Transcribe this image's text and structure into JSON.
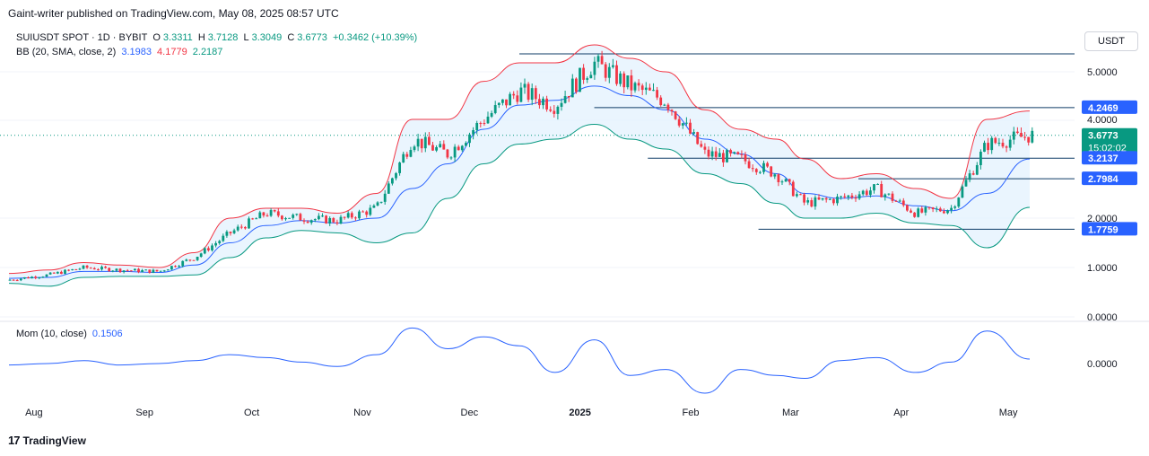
{
  "header": {
    "publisher_line": "Gaint-writer published on TradingView.com, May 08, 2025 08:57 UTC"
  },
  "legend": {
    "symbol": "SUIUSDT SPOT · 1D · BYBIT",
    "open_label": "O",
    "open": "3.3311",
    "high_label": "H",
    "high": "3.7128",
    "low_label": "L",
    "low": "3.3049",
    "close_label": "C",
    "close": "3.6773",
    "change": "+0.3462 (+10.39%)",
    "bb_label": "BB (20, SMA, close, 2)",
    "bb_basis": "3.1983",
    "bb_upper": "4.1779",
    "bb_lower": "2.2187",
    "mom_label": "Mom (10, close)",
    "mom_value": "0.1506"
  },
  "currency": "USDT",
  "brand": {
    "logo": "17",
    "name": "TradingView"
  },
  "colors": {
    "up": "#089981",
    "down": "#f23645",
    "basis": "#2962ff",
    "upper": "#f23645",
    "lower": "#089981",
    "band_fill": "#e3f2fd",
    "level_line": "#0d3b66",
    "badge_blue": "#2962ff",
    "badge_green": "#089981"
  },
  "chart_data": {
    "type": "candlestick",
    "price_axis": {
      "ticks": [
        "5.0000",
        "4.0000",
        "2.0000",
        "1.0000",
        "0.0000"
      ],
      "scale": "log"
    },
    "momentum_axis": {
      "ticks": [
        "0.0000"
      ]
    },
    "x_tick_labels": [
      "Aug",
      "Sep",
      "Oct",
      "Nov",
      "Dec",
      "2025",
      "Feb",
      "Mar",
      "Apr",
      "May"
    ],
    "x": [
      "2024-08-01",
      "2024-09-01",
      "2024-10-01",
      "2024-11-01",
      "2024-12-01",
      "2025-01-01",
      "2025-02-01",
      "2025-03-01",
      "2025-04-01",
      "2025-05-01"
    ],
    "price_labels": [
      {
        "text": "4.2469",
        "value": 4.2469,
        "style": "blue"
      },
      {
        "text": "3.6773",
        "value": 3.6773,
        "style": "green",
        "sub": "15:02:02"
      },
      {
        "text": "3.2137",
        "value": 3.2137,
        "style": "blue"
      },
      {
        "text": "2.7984",
        "value": 2.7984,
        "style": "blue"
      },
      {
        "text": "1.7759",
        "value": 1.7759,
        "style": "blue"
      }
    ],
    "horizontal_levels": [
      {
        "value": 5.4,
        "start": "2024-12-15"
      },
      {
        "value": 4.2469,
        "start": "2025-01-05"
      },
      {
        "value": 3.2137,
        "start": "2025-01-20"
      },
      {
        "value": 2.7984,
        "start": "2025-03-20"
      },
      {
        "value": 1.7759,
        "start": "2025-02-20"
      }
    ],
    "close_series": {
      "dates": [
        "2024-07-25",
        "2024-08-05",
        "2024-08-15",
        "2024-08-25",
        "2024-09-05",
        "2024-09-15",
        "2024-09-25",
        "2024-10-05",
        "2024-10-15",
        "2024-10-25",
        "2024-11-05",
        "2024-11-15",
        "2024-11-25",
        "2024-12-05",
        "2024-12-15",
        "2024-12-25",
        "2025-01-05",
        "2025-01-15",
        "2025-01-25",
        "2025-02-05",
        "2025-02-15",
        "2025-02-25",
        "2025-03-05",
        "2025-03-15",
        "2025-03-25",
        "2025-04-05",
        "2025-04-15",
        "2025-04-25",
        "2025-05-07"
      ],
      "values": [
        0.75,
        0.85,
        1.0,
        0.95,
        0.92,
        1.2,
        1.7,
        2.1,
        2.0,
        1.95,
        2.2,
        3.6,
        3.3,
        4.0,
        4.6,
        4.3,
        5.2,
        4.7,
        4.4,
        3.3,
        3.2,
        2.9,
        2.3,
        2.4,
        2.6,
        2.1,
        2.2,
        3.5,
        3.6773
      ]
    },
    "bb_upper_series": [
      0.88,
      0.95,
      1.1,
      1.05,
      1.0,
      1.3,
      2.0,
      2.2,
      2.2,
      2.1,
      2.5,
      4.0,
      4.0,
      4.8,
      5.2,
      5.2,
      5.6,
      5.3,
      5.0,
      4.2,
      3.8,
      3.6,
      3.2,
      2.8,
      2.9,
      2.6,
      2.4,
      4.0,
      4.1779
    ],
    "bb_lower_series": [
      0.68,
      0.62,
      0.8,
      0.82,
      0.82,
      0.85,
      1.2,
      1.6,
      1.75,
      1.7,
      1.5,
      1.7,
      2.4,
      3.1,
      3.5,
      3.6,
      3.9,
      3.6,
      3.4,
      2.9,
      2.7,
      2.3,
      2.0,
      2.0,
      2.1,
      1.9,
      1.85,
      1.4,
      2.2187
    ],
    "bb_basis_series": [
      0.78,
      0.8,
      0.92,
      0.92,
      0.9,
      1.05,
      1.5,
      1.85,
      1.95,
      1.9,
      2.0,
      2.6,
      3.1,
      3.8,
      4.3,
      4.4,
      4.7,
      4.5,
      4.2,
      3.6,
      3.3,
      2.9,
      2.5,
      2.4,
      2.45,
      2.25,
      2.15,
      2.5,
      3.1983
    ],
    "momentum_series": [
      -0.05,
      0.0,
      0.1,
      -0.05,
      0.0,
      0.1,
      0.3,
      0.2,
      0.05,
      -0.1,
      0.3,
      1.2,
      0.5,
      0.9,
      0.6,
      -0.3,
      0.8,
      -0.4,
      -0.2,
      -1.0,
      -0.2,
      -0.4,
      -0.5,
      0.1,
      0.2,
      -0.3,
      0.05,
      1.1,
      0.1506
    ]
  }
}
